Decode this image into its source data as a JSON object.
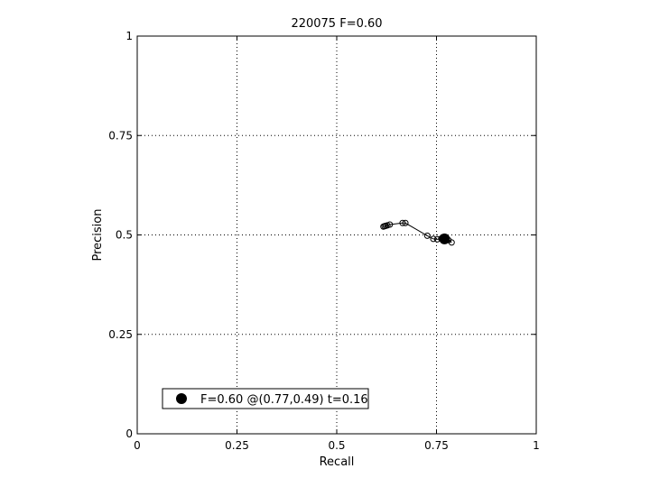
{
  "chart_data": {
    "type": "line",
    "title": "220075 F=0.60",
    "xlabel": "Recall",
    "ylabel": "Precision",
    "xlim": [
      0,
      1
    ],
    "ylim": [
      0,
      1
    ],
    "xticks": [
      0,
      0.25,
      0.5,
      0.75,
      1
    ],
    "xtick_labels": [
      "0",
      "0.25",
      "0.5",
      "0.75",
      "1"
    ],
    "yticks": [
      0,
      0.25,
      0.5,
      0.75,
      1
    ],
    "ytick_labels": [
      "0",
      "0.25",
      "0.5",
      "0.75",
      "1"
    ],
    "grid": true,
    "legend_position": "bottom-left",
    "series": [
      {
        "marker": "open-circle",
        "color": "#000000",
        "points": [
          {
            "x": 0.617,
            "y": 0.521
          },
          {
            "x": 0.62,
            "y": 0.522
          },
          {
            "x": 0.623,
            "y": 0.523
          },
          {
            "x": 0.627,
            "y": 0.524
          },
          {
            "x": 0.633,
            "y": 0.526
          },
          {
            "x": 0.665,
            "y": 0.53
          },
          {
            "x": 0.672,
            "y": 0.53
          },
          {
            "x": 0.727,
            "y": 0.498
          },
          {
            "x": 0.742,
            "y": 0.49
          },
          {
            "x": 0.752,
            "y": 0.489
          },
          {
            "x": 0.762,
            "y": 0.491
          },
          {
            "x": 0.772,
            "y": 0.492
          },
          {
            "x": 0.78,
            "y": 0.487
          },
          {
            "x": 0.788,
            "y": 0.481
          }
        ]
      }
    ],
    "best_point": {
      "x": 0.77,
      "y": 0.49,
      "marker": "filled-circle",
      "color": "#000000"
    },
    "legend": {
      "label": "F=0.60 @(0.77,0.49) t=0.16"
    }
  }
}
